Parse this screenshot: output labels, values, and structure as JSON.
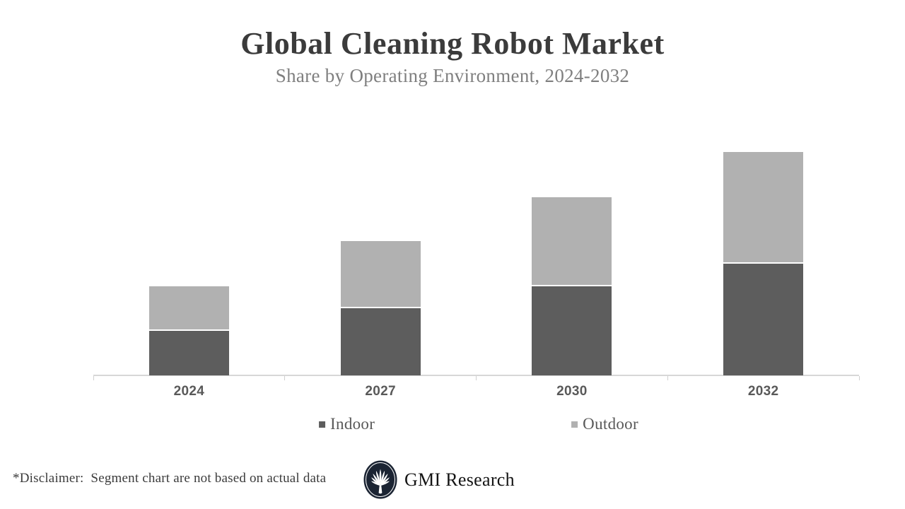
{
  "header": {
    "title": "Global Cleaning Robot Market",
    "subtitle": "Share by Operating Environment, 2024-2032"
  },
  "chart_data": {
    "type": "bar",
    "stacked": true,
    "categories": [
      "2024",
      "2027",
      "2030",
      "2032"
    ],
    "series": [
      {
        "name": "Indoor",
        "color": "#5d5d5d",
        "values": [
          2,
          3,
          4,
          5
        ]
      },
      {
        "name": "Outdoor",
        "color": "#b1b1b1",
        "values": [
          2,
          3,
          4,
          5
        ]
      }
    ],
    "title": "Global Cleaning Robot Market",
    "subtitle": "Share by Operating Environment, 2024-2032",
    "xlabel": "",
    "ylabel": "",
    "y_axis_visible": false,
    "data_labels": false,
    "grid": false,
    "legend_position": "bottom",
    "axis_color": "#d7d7d7",
    "values_note": "relative units read from bar heights; slide states segments are not actual data"
  },
  "footer": {
    "disclaimer": "*Disclaimer:  Segment chart are not based on actual data",
    "brand": "GMI Research",
    "logo_icon": "gmi-fan-logo",
    "logo_color": "#1b2433"
  }
}
